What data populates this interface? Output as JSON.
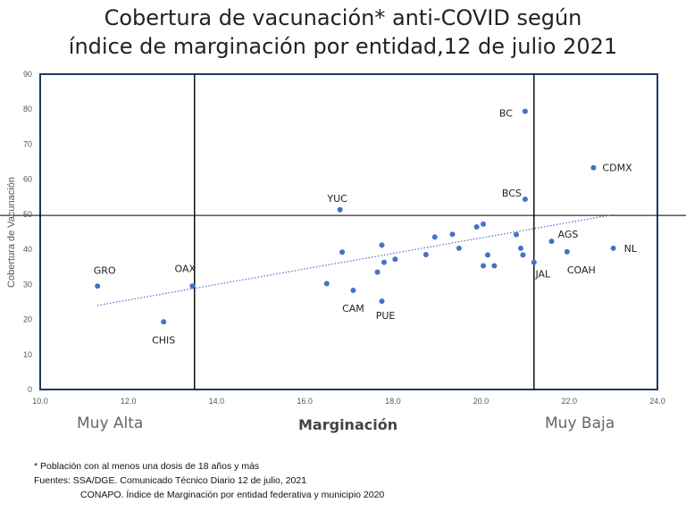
{
  "chart_data": {
    "type": "scatter",
    "title_line1": "Cobertura de vacunación* anti-COVID según",
    "title_line2": "índice de marginación por entidad,12 de julio 2021",
    "ylabel": "Cobertura de Vacunación",
    "xlabel": "Marginación",
    "xlim": [
      10,
      24
    ],
    "ylim": [
      0,
      90
    ],
    "x_ticks": [
      "10.0",
      "12.0",
      "14.0",
      "16.0",
      "18.0",
      "20.0",
      "22.0",
      "24.0"
    ],
    "x_tick_values": [
      10,
      12,
      14,
      16,
      18,
      20,
      22,
      24
    ],
    "y_ticks": [
      "0",
      "10",
      "20",
      "30",
      "40",
      "50",
      "60",
      "70",
      "80",
      "90"
    ],
    "y_tick_values": [
      0,
      10,
      20,
      30,
      40,
      50,
      60,
      70,
      80,
      90
    ],
    "reference_lines": {
      "vertical": [
        13.5,
        21.2
      ],
      "horizontal": 49.7
    },
    "trendline": {
      "x": [
        11.3,
        23.0
      ],
      "y": [
        24.0,
        49.9
      ]
    },
    "category_left": "Muy Alta",
    "category_right": "Muy Baja",
    "points": [
      {
        "x": 11.3,
        "y": 29.5,
        "label": "GRO"
      },
      {
        "x": 12.8,
        "y": 19.3,
        "label": "CHIS"
      },
      {
        "x": 13.45,
        "y": 29.5,
        "label": "OAX"
      },
      {
        "x": 16.5,
        "y": 30.2,
        "label": ""
      },
      {
        "x": 16.85,
        "y": 39.2,
        "label": ""
      },
      {
        "x": 16.8,
        "y": 51.3,
        "label": "YUC"
      },
      {
        "x": 17.1,
        "y": 28.3,
        "label": "CAM"
      },
      {
        "x": 17.65,
        "y": 33.5,
        "label": ""
      },
      {
        "x": 17.75,
        "y": 41.2,
        "label": ""
      },
      {
        "x": 17.75,
        "y": 25.2,
        "label": "PUE"
      },
      {
        "x": 17.8,
        "y": 36.3,
        "label": ""
      },
      {
        "x": 18.05,
        "y": 37.2,
        "label": ""
      },
      {
        "x": 18.75,
        "y": 38.5,
        "label": ""
      },
      {
        "x": 18.95,
        "y": 43.5,
        "label": ""
      },
      {
        "x": 19.35,
        "y": 44.3,
        "label": ""
      },
      {
        "x": 19.5,
        "y": 40.3,
        "label": ""
      },
      {
        "x": 19.9,
        "y": 46.4,
        "label": ""
      },
      {
        "x": 20.05,
        "y": 35.3,
        "label": ""
      },
      {
        "x": 20.05,
        "y": 47.2,
        "label": ""
      },
      {
        "x": 20.15,
        "y": 38.4,
        "label": ""
      },
      {
        "x": 20.3,
        "y": 35.3,
        "label": ""
      },
      {
        "x": 20.8,
        "y": 44.2,
        "label": ""
      },
      {
        "x": 20.9,
        "y": 40.3,
        "label": ""
      },
      {
        "x": 20.95,
        "y": 38.4,
        "label": ""
      },
      {
        "x": 21.0,
        "y": 79.4,
        "label": "BC"
      },
      {
        "x": 21.0,
        "y": 54.3,
        "label": "BCS"
      },
      {
        "x": 21.2,
        "y": 36.3,
        "label": "JAL"
      },
      {
        "x": 21.6,
        "y": 42.3,
        "label": "AGS"
      },
      {
        "x": 21.95,
        "y": 39.3,
        "label": "COAH"
      },
      {
        "x": 22.55,
        "y": 63.3,
        "label": "CDMX"
      },
      {
        "x": 23.0,
        "y": 40.3,
        "label": "NL"
      }
    ]
  },
  "footnotes": {
    "line1": "* Población con al menos una dosis  de 18 años y más",
    "line2": "Fuentes: SSA/DGE. Comunicado Técnico Diario 12 de julio, 2021",
    "line3": "CONAPO. Índice de Marginación por entidad federativa y municipio 2020"
  },
  "colors": {
    "point": "#4472C4",
    "frame": "#1F3864",
    "refline": "#000000",
    "trend": "#4472C4"
  }
}
